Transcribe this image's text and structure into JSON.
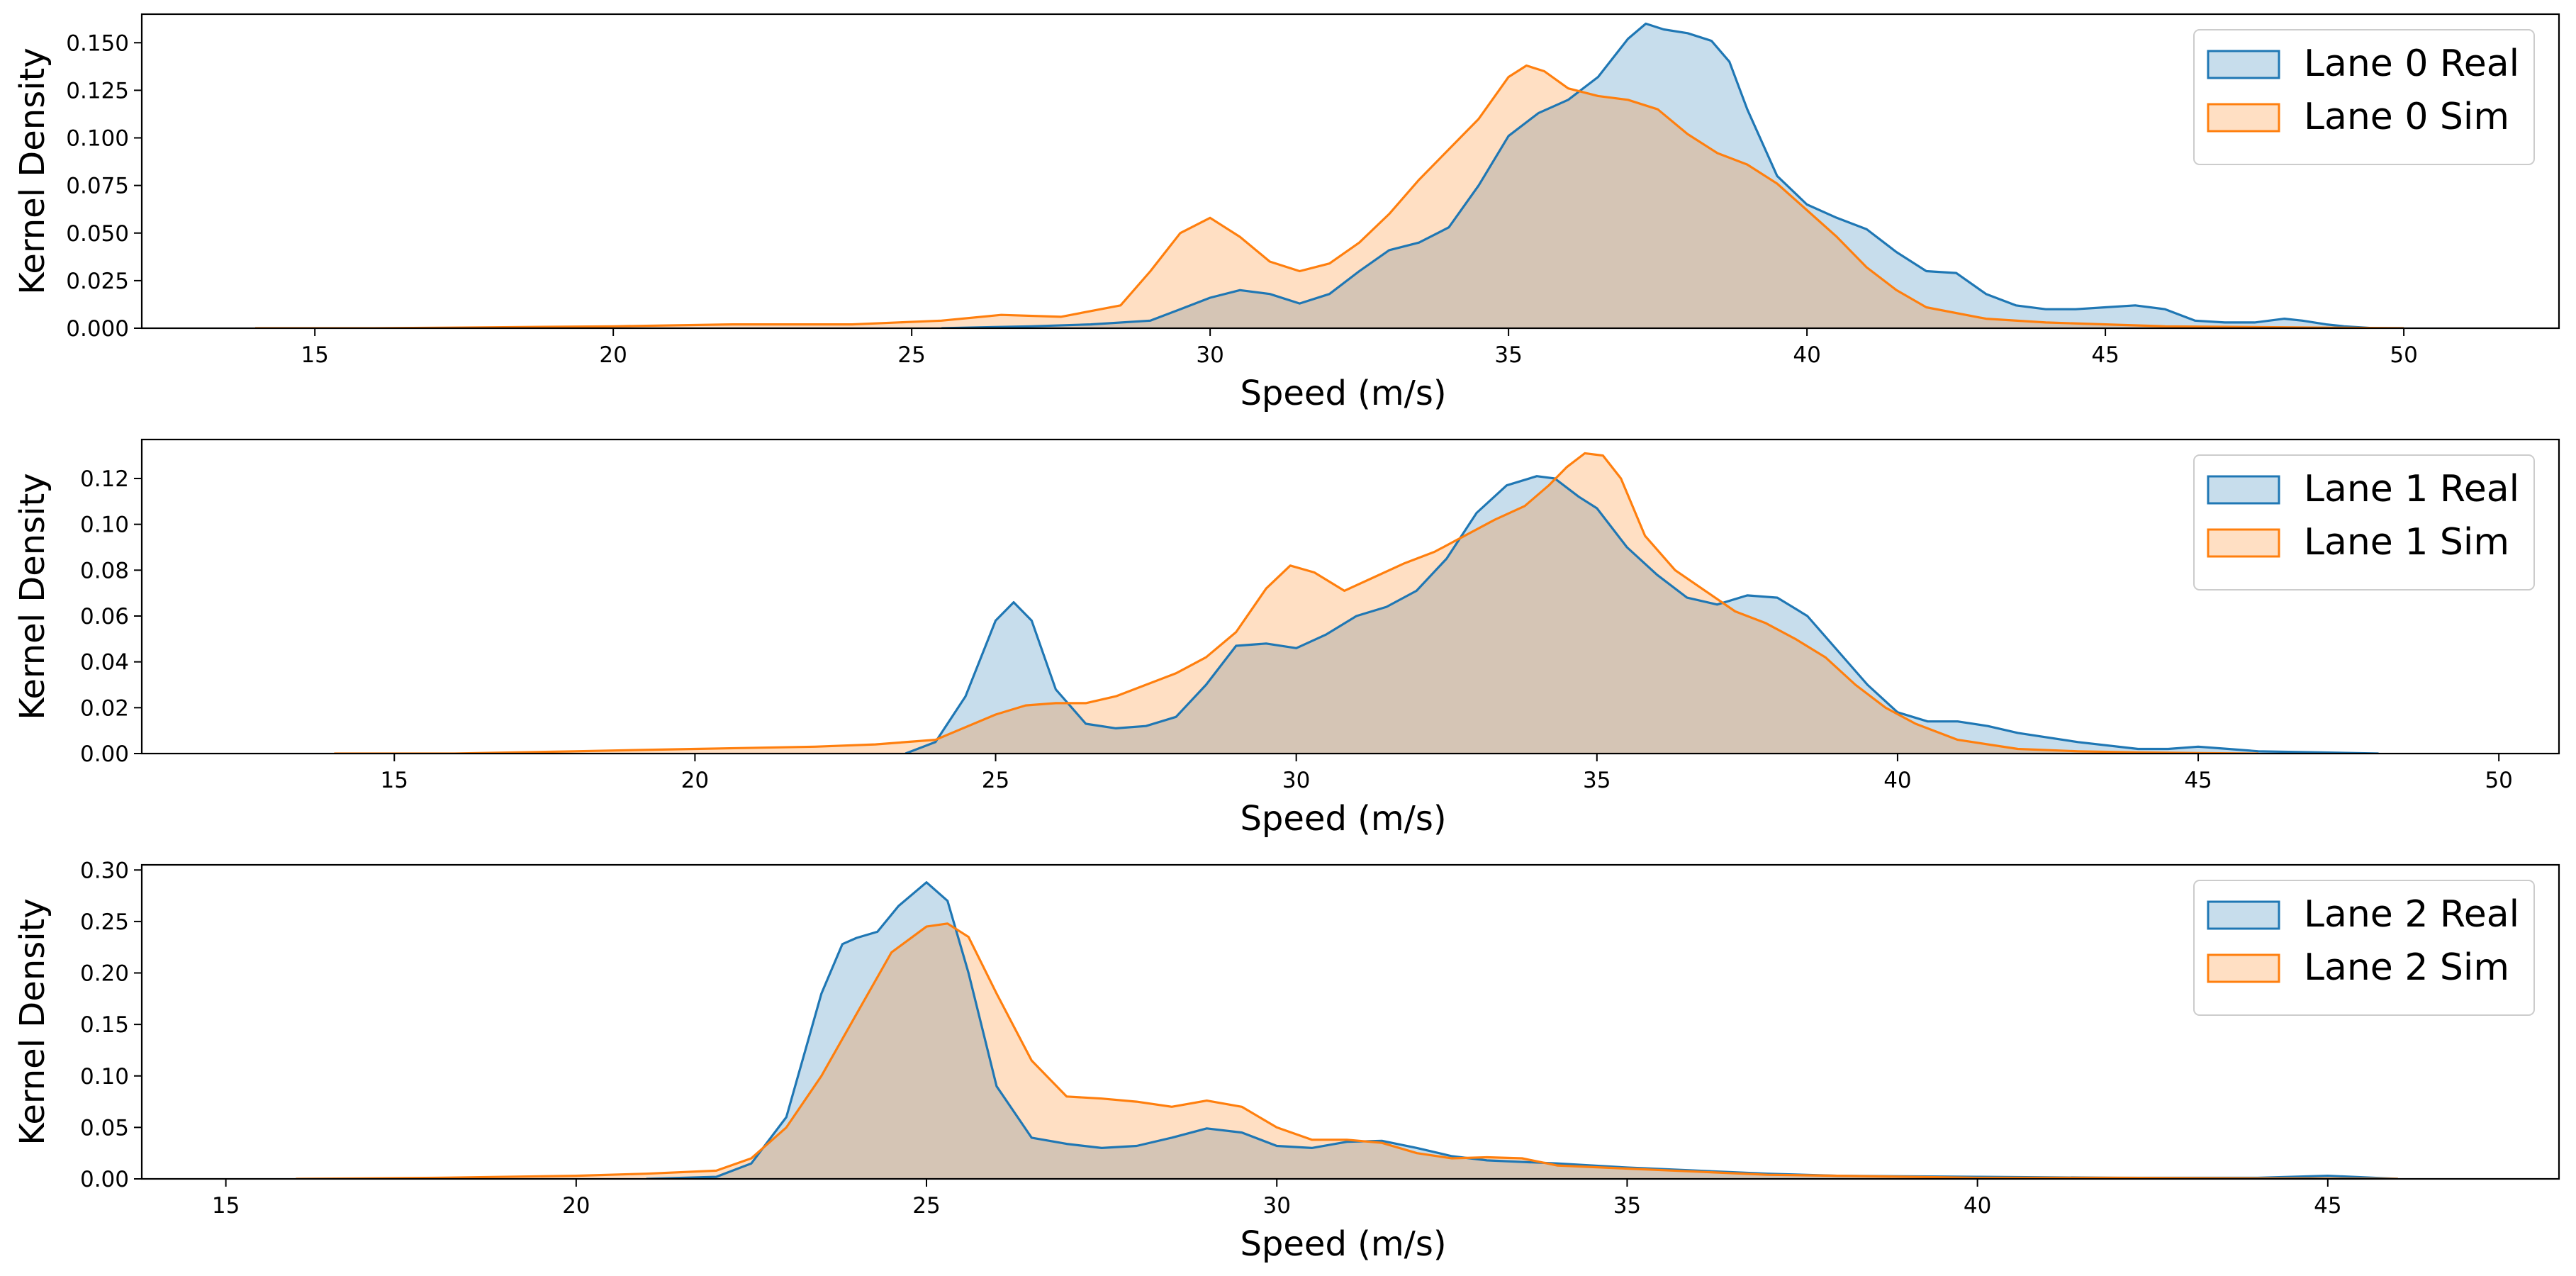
{
  "colors": {
    "real": "#1f77b4",
    "sim": "#ff7f0e",
    "real_fill": "#aec0e2",
    "sim_fill": "#ffcba1"
  },
  "chart_data": [
    {
      "type": "area",
      "title": "",
      "xlabel": "Speed (m/s)",
      "ylabel": "Kernel Density",
      "xlim": [
        12.1,
        52.6
      ],
      "ylim": [
        0,
        0.165
      ],
      "xticks": [
        15,
        20,
        25,
        30,
        35,
        40,
        45,
        50
      ],
      "yticks": [
        0,
        0.025,
        0.05,
        0.075,
        0.1,
        0.125,
        0.15
      ],
      "ytick_labels": [
        "0.000",
        "0.025",
        "0.050",
        "0.075",
        "0.100",
        "0.125",
        "0.150"
      ],
      "legend_position": "top-right",
      "series": [
        {
          "name": "Lane 0 Real",
          "color": "real",
          "x": [
            25.5,
            27,
            28,
            29,
            29.5,
            30,
            30.5,
            31,
            31.5,
            32,
            32.5,
            33,
            33.5,
            34,
            34.5,
            35,
            35.5,
            36,
            36.5,
            37,
            37.3,
            37.6,
            38,
            38.4,
            38.7,
            39,
            39.5,
            40,
            40.5,
            41,
            41.5,
            42,
            42.5,
            43,
            43.5,
            44,
            44.5,
            45,
            45.5,
            46,
            46.5,
            47,
            47.5,
            48,
            48.3,
            48.7,
            49,
            49.5,
            50
          ],
          "y": [
            0,
            0.001,
            0.002,
            0.004,
            0.01,
            0.016,
            0.02,
            0.018,
            0.013,
            0.018,
            0.03,
            0.041,
            0.045,
            0.053,
            0.075,
            0.101,
            0.113,
            0.12,
            0.132,
            0.152,
            0.16,
            0.157,
            0.155,
            0.151,
            0.14,
            0.115,
            0.08,
            0.065,
            0.058,
            0.052,
            0.04,
            0.03,
            0.029,
            0.018,
            0.012,
            0.01,
            0.01,
            0.011,
            0.012,
            0.01,
            0.004,
            0.003,
            0.003,
            0.005,
            0.004,
            0.002,
            0.001,
            0,
            0
          ]
        },
        {
          "name": "Lane 0 Sim",
          "color": "sim",
          "x": [
            14,
            16,
            18,
            20,
            22,
            24,
            25.5,
            26.5,
            27.5,
            28.5,
            29,
            29.5,
            30,
            30.5,
            31,
            31.5,
            32,
            32.5,
            33,
            33.5,
            34,
            34.5,
            35,
            35.3,
            35.6,
            36,
            36.5,
            37,
            37.5,
            38,
            38.5,
            39,
            39.5,
            40,
            40.5,
            41,
            41.5,
            42,
            43,
            44,
            45,
            46,
            48,
            50
          ],
          "y": [
            0,
            0,
            0.0005,
            0.001,
            0.002,
            0.002,
            0.004,
            0.007,
            0.006,
            0.012,
            0.03,
            0.05,
            0.058,
            0.048,
            0.035,
            0.03,
            0.034,
            0.045,
            0.06,
            0.078,
            0.094,
            0.11,
            0.132,
            0.138,
            0.135,
            0.126,
            0.122,
            0.12,
            0.115,
            0.102,
            0.092,
            0.086,
            0.076,
            0.062,
            0.048,
            0.032,
            0.02,
            0.011,
            0.005,
            0.003,
            0.002,
            0.001,
            0.0005,
            0
          ]
        }
      ]
    },
    {
      "type": "area",
      "title": "",
      "xlabel": "Speed (m/s)",
      "ylabel": "Kernel Density",
      "xlim": [
        10.8,
        51.0
      ],
      "ylim": [
        0,
        0.137
      ],
      "xticks": [
        15,
        20,
        25,
        30,
        35,
        40,
        45,
        50
      ],
      "yticks": [
        0,
        0.02,
        0.04,
        0.06,
        0.08,
        0.1,
        0.12
      ],
      "ytick_labels": [
        "0.00",
        "0.02",
        "0.04",
        "0.06",
        "0.08",
        "0.10",
        "0.12"
      ],
      "legend_position": "top-right",
      "series": [
        {
          "name": "Lane 1 Real",
          "color": "real",
          "x": [
            23.5,
            24,
            24.5,
            25,
            25.3,
            25.6,
            26,
            26.5,
            27,
            27.5,
            28,
            28.5,
            29,
            29.5,
            30,
            30.5,
            31,
            31.5,
            32,
            32.5,
            33,
            33.5,
            34,
            34.3,
            34.7,
            35,
            35.5,
            36,
            36.5,
            37,
            37.5,
            38,
            38.5,
            39,
            39.5,
            40,
            40.5,
            41,
            41.5,
            42,
            43,
            44,
            44.5,
            45,
            45.5,
            46,
            47,
            48
          ],
          "y": [
            0,
            0.005,
            0.025,
            0.058,
            0.066,
            0.058,
            0.028,
            0.013,
            0.011,
            0.012,
            0.016,
            0.03,
            0.047,
            0.048,
            0.046,
            0.052,
            0.06,
            0.064,
            0.071,
            0.085,
            0.105,
            0.117,
            0.121,
            0.12,
            0.112,
            0.107,
            0.09,
            0.078,
            0.068,
            0.065,
            0.069,
            0.068,
            0.06,
            0.045,
            0.03,
            0.018,
            0.014,
            0.014,
            0.012,
            0.009,
            0.005,
            0.002,
            0.002,
            0.003,
            0.002,
            0.001,
            0.0005,
            0
          ]
        },
        {
          "name": "Lane 1 Sim",
          "color": "sim",
          "x": [
            14,
            16,
            18,
            20,
            22,
            23,
            24,
            25,
            25.5,
            26,
            26.5,
            27,
            27.5,
            28,
            28.5,
            29,
            29.5,
            29.9,
            30.3,
            30.8,
            31.3,
            31.8,
            32.3,
            32.8,
            33.3,
            33.8,
            34.2,
            34.5,
            34.8,
            35.1,
            35.4,
            35.8,
            36.3,
            36.8,
            37.3,
            37.8,
            38.3,
            38.8,
            39.3,
            39.8,
            40.3,
            41,
            42,
            43,
            44,
            45,
            46
          ],
          "y": [
            0,
            0,
            0.001,
            0.002,
            0.003,
            0.004,
            0.006,
            0.017,
            0.021,
            0.022,
            0.022,
            0.025,
            0.03,
            0.035,
            0.042,
            0.053,
            0.072,
            0.082,
            0.079,
            0.071,
            0.077,
            0.083,
            0.088,
            0.095,
            0.102,
            0.108,
            0.117,
            0.125,
            0.131,
            0.13,
            0.12,
            0.095,
            0.08,
            0.071,
            0.062,
            0.057,
            0.05,
            0.042,
            0.03,
            0.02,
            0.013,
            0.006,
            0.002,
            0.001,
            0.0005,
            0.0002,
            0
          ]
        }
      ]
    },
    {
      "type": "area",
      "title": "",
      "xlabel": "Speed (m/s)",
      "ylabel": "Kernel Density",
      "xlim": [
        13.8,
        48.3
      ],
      "ylim": [
        0,
        0.305
      ],
      "xticks": [
        15,
        20,
        25,
        30,
        35,
        40,
        45
      ],
      "yticks": [
        0,
        0.05,
        0.1,
        0.15,
        0.2,
        0.25,
        0.3
      ],
      "ytick_labels": [
        "0.00",
        "0.05",
        "0.10",
        "0.15",
        "0.20",
        "0.25",
        "0.30"
      ],
      "legend_position": "top-right",
      "series": [
        {
          "name": "Lane 2 Real",
          "color": "real",
          "x": [
            21,
            22,
            22.5,
            23,
            23.5,
            23.8,
            24,
            24.3,
            24.6,
            25,
            25.3,
            25.6,
            26,
            26.5,
            27,
            27.5,
            28,
            28.5,
            29,
            29.5,
            30,
            30.5,
            31,
            31.5,
            32,
            32.5,
            33,
            34,
            35,
            36,
            37,
            38,
            40,
            42,
            44,
            45,
            46
          ],
          "y": [
            0,
            0.002,
            0.015,
            0.06,
            0.18,
            0.228,
            0.234,
            0.24,
            0.265,
            0.288,
            0.27,
            0.2,
            0.09,
            0.04,
            0.034,
            0.03,
            0.032,
            0.04,
            0.049,
            0.045,
            0.032,
            0.03,
            0.036,
            0.037,
            0.03,
            0.022,
            0.018,
            0.015,
            0.011,
            0.008,
            0.005,
            0.003,
            0.002,
            0.001,
            0.001,
            0.003,
            0
          ]
        },
        {
          "name": "Lane 2 Sim",
          "color": "sim",
          "x": [
            16,
            18,
            20,
            21,
            22,
            22.5,
            23,
            23.5,
            24,
            24.5,
            25,
            25.3,
            25.6,
            26,
            26.5,
            27,
            27.5,
            28,
            28.5,
            29,
            29.5,
            30,
            30.5,
            31,
            31.5,
            32,
            32.5,
            33,
            33.5,
            34,
            35,
            36,
            37,
            38,
            40,
            42,
            44,
            46
          ],
          "y": [
            0,
            0.001,
            0.003,
            0.005,
            0.008,
            0.02,
            0.05,
            0.1,
            0.16,
            0.22,
            0.245,
            0.248,
            0.235,
            0.18,
            0.115,
            0.08,
            0.078,
            0.075,
            0.07,
            0.076,
            0.07,
            0.05,
            0.038,
            0.038,
            0.035,
            0.025,
            0.02,
            0.021,
            0.02,
            0.013,
            0.01,
            0.007,
            0.004,
            0.003,
            0.001,
            0.001,
            0.0005,
            0
          ]
        }
      ]
    }
  ]
}
